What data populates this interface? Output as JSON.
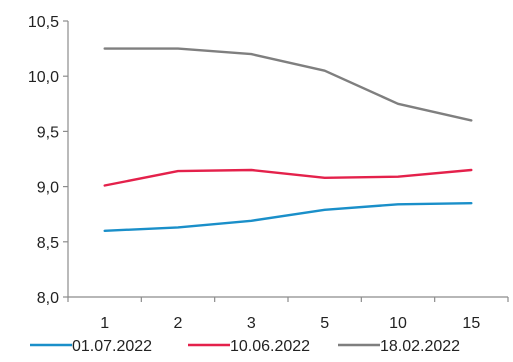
{
  "chart_data": {
    "type": "line",
    "categories": [
      "1",
      "2",
      "3",
      "5",
      "10",
      "15"
    ],
    "y_ticks": [
      "8,0",
      "8,5",
      "9,0",
      "9,5",
      "10,0",
      "10,5"
    ],
    "y_tick_values": [
      8.0,
      8.5,
      9.0,
      9.5,
      10.0,
      10.5
    ],
    "ylim": [
      8.0,
      10.5
    ],
    "grid": false,
    "legend_position": "bottom",
    "series": [
      {
        "name": "01.07.2022",
        "color": "#1a8fc9",
        "values": [
          8.6,
          8.63,
          8.69,
          8.79,
          8.84,
          8.85
        ]
      },
      {
        "name": "10.06.2022",
        "color": "#e4214b",
        "values": [
          9.01,
          9.14,
          9.15,
          9.08,
          9.09,
          9.15
        ]
      },
      {
        "name": "18.02.2022",
        "color": "#7f7f7f",
        "values": [
          10.25,
          10.25,
          10.2,
          10.05,
          9.75,
          9.6
        ]
      }
    ]
  }
}
